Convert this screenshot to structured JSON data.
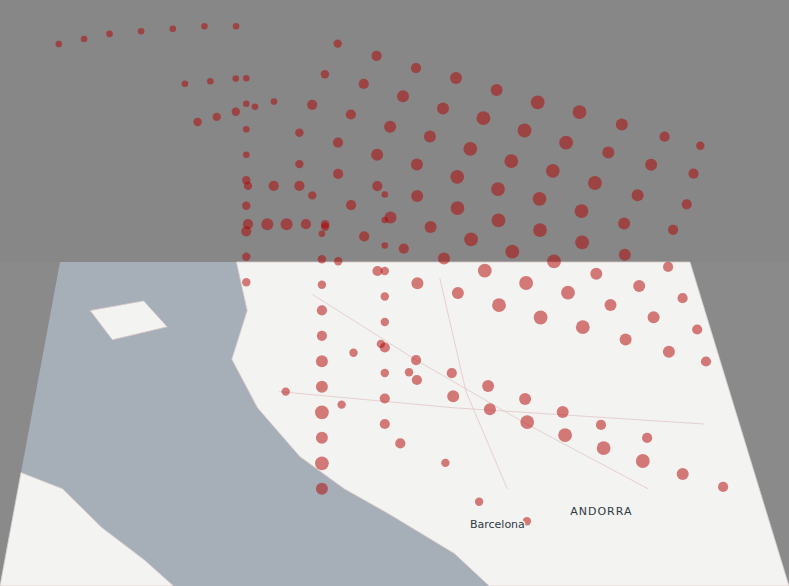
{
  "chart_data": {
    "type": "scatter3d",
    "color": "#b20000",
    "xlim": [
      0,
      100
    ],
    "ylim": [
      0,
      100
    ],
    "zlim": [
      0,
      100
    ],
    "map_labels": [
      {
        "text": "ANDORRA",
        "x": 78,
        "y": 22
      },
      {
        "text": "Barcelona",
        "x": 64,
        "y": 18
      }
    ],
    "tracks": [
      {
        "points": [
          [
            44,
            95,
            92,
            3
          ],
          [
            50,
            92,
            91,
            4
          ],
          [
            56,
            89,
            90,
            4
          ],
          [
            62,
            86,
            90,
            5
          ],
          [
            68,
            83,
            89,
            5
          ],
          [
            74,
            80,
            88,
            6
          ],
          [
            80,
            77,
            88,
            6
          ],
          [
            86,
            74,
            87,
            5
          ],
          [
            92,
            71,
            86,
            4
          ],
          [
            97,
            69,
            85,
            3
          ]
        ]
      },
      {
        "points": [
          [
            42,
            95,
            80,
            3
          ],
          [
            48,
            92,
            80,
            4
          ],
          [
            54,
            89,
            79,
            5
          ],
          [
            60,
            86,
            78,
            5
          ],
          [
            66,
            83,
            78,
            6
          ],
          [
            72,
            80,
            77,
            6
          ],
          [
            78,
            77,
            76,
            6
          ],
          [
            84,
            74,
            76,
            5
          ],
          [
            90,
            71,
            75,
            5
          ],
          [
            96,
            69,
            74,
            4
          ]
        ]
      },
      {
        "points": [
          [
            40,
            95,
            68,
            4
          ],
          [
            46,
            92,
            68,
            4
          ],
          [
            52,
            89,
            67,
            5
          ],
          [
            58,
            86,
            67,
            5
          ],
          [
            64,
            83,
            66,
            6
          ],
          [
            70,
            80,
            65,
            6
          ],
          [
            76,
            77,
            65,
            6
          ],
          [
            82,
            74,
            64,
            6
          ],
          [
            88,
            71,
            63,
            5
          ],
          [
            95,
            69,
            62,
            4
          ]
        ]
      },
      {
        "points": [
          [
            38,
            95,
            57,
            3
          ],
          [
            44,
            92,
            57,
            4
          ],
          [
            50,
            89,
            56,
            5
          ],
          [
            56,
            86,
            56,
            5
          ],
          [
            62,
            83,
            55,
            6
          ],
          [
            68,
            80,
            54,
            6
          ],
          [
            74,
            77,
            54,
            6
          ],
          [
            80,
            74,
            53,
            6
          ],
          [
            86,
            71,
            52,
            5
          ],
          [
            93,
            69,
            52,
            4
          ]
        ]
      },
      {
        "points": [
          [
            38,
            94,
            46,
            3
          ],
          [
            44,
            91,
            46,
            4
          ],
          [
            50,
            88,
            45,
            4
          ],
          [
            56,
            85,
            45,
            5
          ],
          [
            62,
            82,
            44,
            6
          ],
          [
            68,
            79,
            43,
            6
          ],
          [
            74,
            76,
            43,
            6
          ],
          [
            80,
            73,
            42,
            6
          ],
          [
            86,
            70,
            41,
            5
          ],
          [
            92,
            67,
            40,
            4
          ]
        ]
      },
      {
        "points": [
          [
            40,
            93,
            35,
            3
          ],
          [
            46,
            90,
            35,
            4
          ],
          [
            52,
            87,
            34,
            5
          ],
          [
            58,
            84,
            34,
            5
          ],
          [
            64,
            81,
            33,
            6
          ],
          [
            70,
            78,
            32,
            6
          ],
          [
            76,
            75,
            32,
            6
          ],
          [
            82,
            72,
            31,
            5
          ],
          [
            88,
            69,
            30,
            5
          ],
          [
            94,
            66,
            29,
            4
          ]
        ]
      },
      {
        "points": [
          [
            42,
            92,
            24,
            3
          ],
          [
            48,
            89,
            24,
            4
          ],
          [
            54,
            86,
            23,
            4
          ],
          [
            60,
            83,
            23,
            5
          ],
          [
            66,
            80,
            22,
            6
          ],
          [
            72,
            77,
            21,
            6
          ],
          [
            78,
            74,
            21,
            6
          ],
          [
            84,
            71,
            20,
            5
          ],
          [
            90,
            68,
            19,
            5
          ],
          [
            96,
            65,
            18,
            4
          ]
        ]
      },
      {
        "points": [
          [
            44,
            90,
            13,
            3
          ],
          [
            50,
            87,
            13,
            4
          ],
          [
            56,
            84,
            12,
            5
          ],
          [
            62,
            81,
            12,
            5
          ],
          [
            68,
            78,
            11,
            6
          ],
          [
            74,
            75,
            10,
            6
          ],
          [
            80,
            72,
            10,
            6
          ],
          [
            86,
            69,
            9,
            5
          ],
          [
            92,
            66,
            8,
            5
          ],
          [
            97,
            63,
            8,
            4
          ]
        ]
      },
      {
        "points": [
          [
            55,
            62,
            2,
            4
          ],
          [
            60,
            57,
            2,
            5
          ],
          [
            65,
            53,
            2,
            5
          ],
          [
            70,
            49,
            2,
            6
          ],
          [
            75,
            45,
            2,
            6
          ],
          [
            80,
            41,
            2,
            6
          ],
          [
            85,
            37,
            2,
            6
          ],
          [
            90,
            33,
            2,
            5
          ],
          [
            95,
            29,
            2,
            4
          ]
        ]
      },
      {
        "points": [
          [
            50,
            70,
            6,
            3
          ],
          [
            55,
            65,
            6,
            4
          ],
          [
            60,
            61,
            6,
            4
          ],
          [
            65,
            57,
            6,
            5
          ],
          [
            70,
            53,
            6,
            5
          ],
          [
            75,
            49,
            6,
            5
          ],
          [
            80,
            45,
            6,
            4
          ],
          [
            86,
            41,
            6,
            4
          ]
        ]
      },
      {
        "points": [
          [
            41,
            30,
            0,
            5
          ],
          [
            41,
            30,
            10,
            6
          ],
          [
            41,
            30,
            20,
            5
          ],
          [
            41,
            30,
            30,
            6
          ],
          [
            41,
            30,
            40,
            5
          ],
          [
            41,
            30,
            50,
            5
          ],
          [
            41,
            30,
            60,
            4
          ],
          [
            41,
            30,
            70,
            4
          ],
          [
            41,
            30,
            80,
            3
          ],
          [
            41,
            30,
            90,
            3
          ],
          [
            41,
            30,
            100,
            2
          ]
        ]
      },
      {
        "points": [
          [
            50,
            50,
            0,
            4
          ],
          [
            50,
            50,
            10,
            4
          ],
          [
            50,
            50,
            20,
            3
          ],
          [
            50,
            50,
            30,
            4
          ],
          [
            50,
            50,
            40,
            3
          ],
          [
            50,
            50,
            50,
            3
          ],
          [
            50,
            50,
            60,
            3
          ],
          [
            50,
            50,
            70,
            2
          ],
          [
            50,
            50,
            80,
            2
          ],
          [
            50,
            50,
            90,
            2
          ]
        ]
      },
      {
        "points": [
          [
            30,
            78,
            20,
            3
          ],
          [
            30,
            78,
            30,
            3
          ],
          [
            30,
            78,
            40,
            4
          ],
          [
            30,
            78,
            50,
            3
          ],
          [
            30,
            78,
            60,
            3
          ],
          [
            30,
            78,
            70,
            2
          ],
          [
            30,
            78,
            80,
            2
          ],
          [
            30,
            78,
            90,
            2
          ],
          [
            30,
            78,
            100,
            2
          ]
        ]
      },
      {
        "points": [
          [
            0,
            98,
            88,
            2
          ],
          [
            4,
            98,
            90,
            2
          ],
          [
            8,
            98,
            92,
            2
          ],
          [
            13,
            98,
            93,
            2
          ],
          [
            18,
            98,
            94,
            2
          ],
          [
            23,
            98,
            95,
            2
          ],
          [
            28,
            98,
            95,
            2
          ]
        ]
      },
      {
        "points": [
          [
            30,
            92,
            25,
            4
          ],
          [
            33,
            92,
            25,
            5
          ],
          [
            36,
            92,
            25,
            5
          ],
          [
            39,
            92,
            25,
            4
          ],
          [
            42,
            92,
            25,
            3
          ],
          [
            30,
            92,
            40,
            3
          ],
          [
            34,
            92,
            40,
            4
          ],
          [
            38,
            92,
            40,
            4
          ]
        ]
      },
      {
        "points": [
          [
            22,
            96,
            60,
            3
          ],
          [
            25,
            96,
            62,
            3
          ],
          [
            28,
            96,
            64,
            3
          ],
          [
            31,
            96,
            66,
            2
          ],
          [
            34,
            96,
            68,
            2
          ],
          [
            20,
            96,
            75,
            2
          ],
          [
            24,
            96,
            76,
            2
          ],
          [
            28,
            96,
            77,
            2
          ]
        ]
      },
      {
        "points": [
          [
            36,
            60,
            0,
            3
          ],
          [
            44,
            56,
            0,
            3
          ],
          [
            52,
            44,
            0,
            4
          ],
          [
            58,
            38,
            0,
            3
          ],
          [
            62,
            26,
            0,
            3
          ],
          [
            68,
            20,
            0,
            3
          ],
          [
            46,
            72,
            0,
            3
          ],
          [
            54,
            66,
            0,
            3
          ]
        ]
      }
    ]
  }
}
